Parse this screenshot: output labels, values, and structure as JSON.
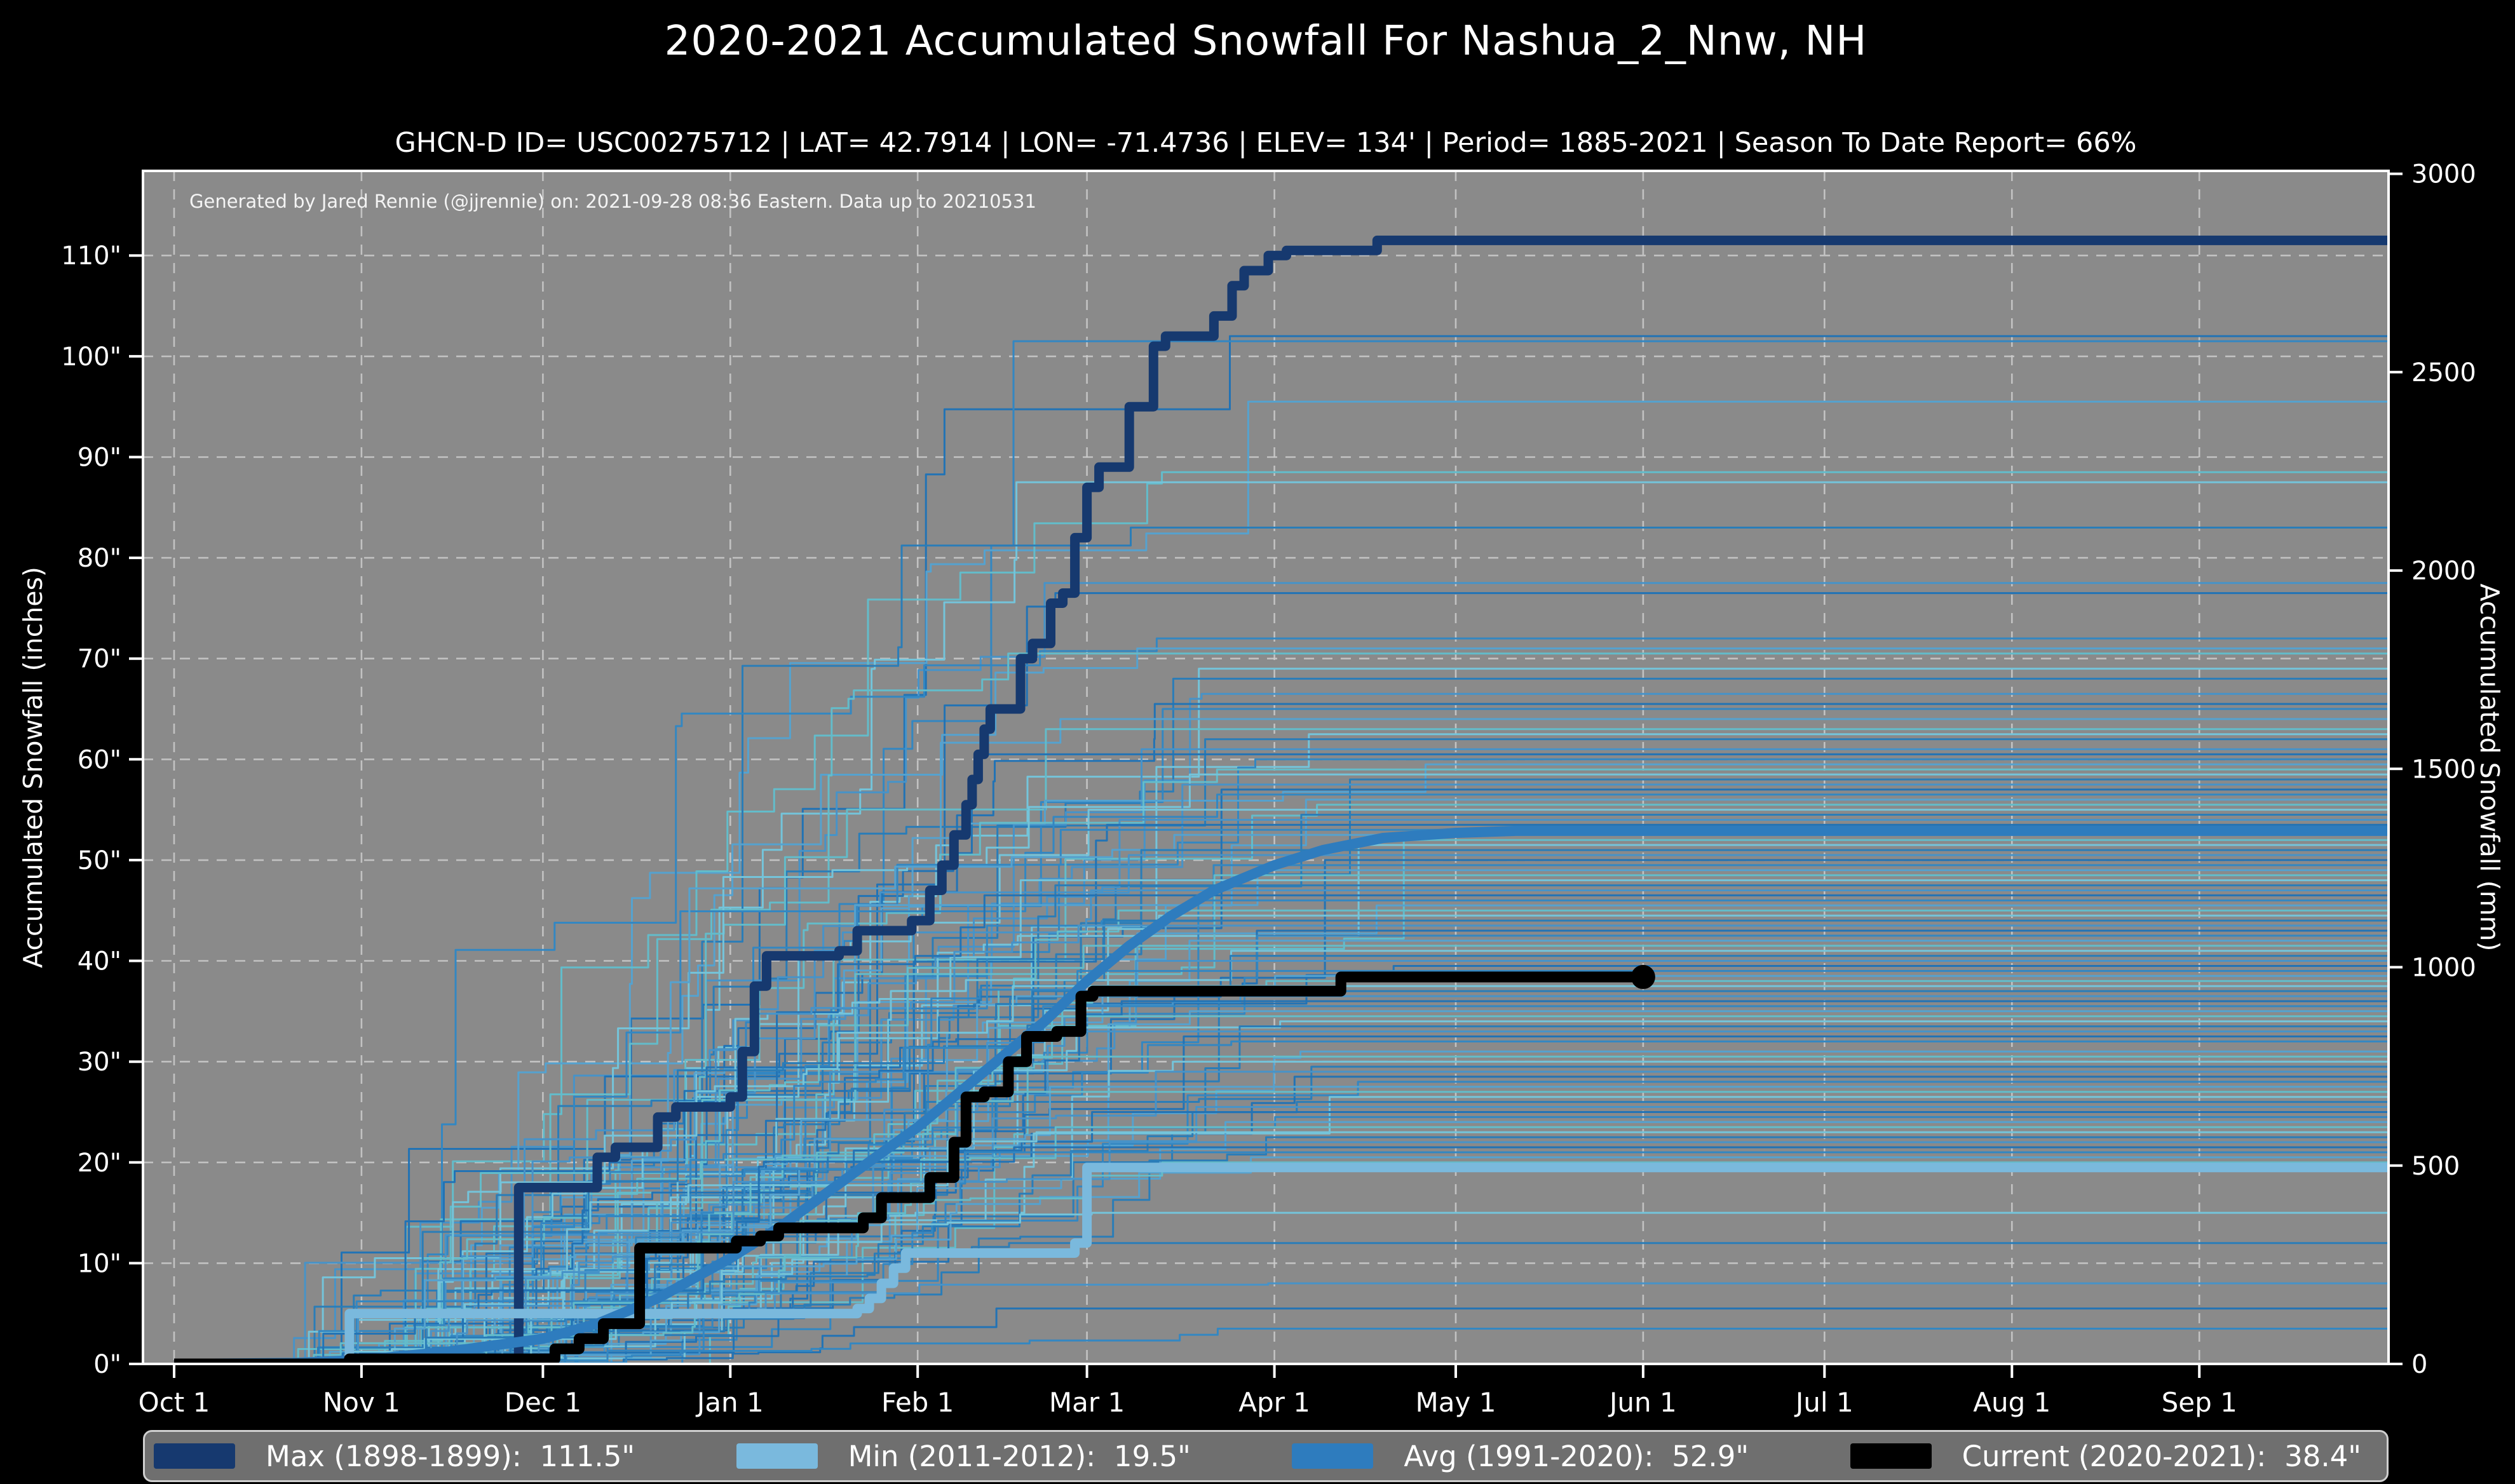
{
  "title": "2020-2021 Accumulated Snowfall For Nashua_2_Nnw, NH",
  "subtitle": "GHCN-D ID= USC00275712 | LAT= 42.7914 | LON= -71.4736 | ELEV= 134' | Period= 1885-2021 | Season To Date Report= 66%",
  "attribution": "Generated by Jared Rennie (@jjrennie) on: 2021-09-28 08:36 Eastern. Data up to 20210531",
  "colors": {
    "page_bg": "#000000",
    "plot_bg": "#8a8a8a",
    "grid": "#cccccc",
    "spine": "#ffffff",
    "max": "#16396f",
    "min": "#7ab9dd",
    "avg": "#2e7cbe",
    "current": "#000000",
    "legend_bg": "#6f6f6f",
    "legend_border": "#cfcfcf"
  },
  "chart_data": {
    "type": "line",
    "title": "2020-2021 Accumulated Snowfall For Nashua_2_Nnw, NH",
    "xlabel": "",
    "ylabel_left": "Accumulated Snowfall (inches)",
    "ylabel_right": "Accumulated Snowfall (mm)",
    "grid": "dashed",
    "xlim_days_from_oct1": [
      -5.15,
      366.3
    ],
    "ylim_inches": [
      0,
      118.4
    ],
    "x_ticks": [
      {
        "day": 0,
        "label": "Oct 1"
      },
      {
        "day": 31,
        "label": "Nov 1"
      },
      {
        "day": 61,
        "label": "Dec 1"
      },
      {
        "day": 92,
        "label": "Jan 1"
      },
      {
        "day": 123,
        "label": "Feb 1"
      },
      {
        "day": 151,
        "label": "Mar 1"
      },
      {
        "day": 182,
        "label": "Apr 1"
      },
      {
        "day": 212,
        "label": "May 1"
      },
      {
        "day": 243,
        "label": "Jun 1"
      },
      {
        "day": 273,
        "label": "Jul 1"
      },
      {
        "day": 304,
        "label": "Aug 1"
      },
      {
        "day": 335,
        "label": "Sep 1"
      }
    ],
    "y_ticks_left_inches": [
      0,
      10,
      20,
      30,
      40,
      50,
      60,
      70,
      80,
      90,
      100,
      110
    ],
    "y_tick_left_suffix": "\"",
    "y_ticks_right_mm": [
      0,
      500,
      1000,
      1500,
      2000,
      2500,
      3000
    ],
    "series": [
      {
        "name": "Max (1898-1899)",
        "total_inches": 111.5,
        "style": "step",
        "color": "#16396f",
        "width": 15,
        "extend_to_day": 367,
        "points": [
          [
            0,
            0
          ],
          [
            55,
            0.5
          ],
          [
            57,
            17.5
          ],
          [
            70,
            20.5
          ],
          [
            73,
            21.5
          ],
          [
            80,
            24.5
          ],
          [
            83,
            25.5
          ],
          [
            92,
            26.5
          ],
          [
            94,
            31
          ],
          [
            96,
            37.5
          ],
          [
            98,
            40.5
          ],
          [
            110,
            41
          ],
          [
            113,
            43
          ],
          [
            122,
            44
          ],
          [
            125,
            47
          ],
          [
            127,
            49.5
          ],
          [
            129,
            52.5
          ],
          [
            131,
            55.5
          ],
          [
            132,
            58
          ],
          [
            133,
            60.5
          ],
          [
            134,
            63
          ],
          [
            135,
            65
          ],
          [
            140,
            70
          ],
          [
            142,
            71.5
          ],
          [
            145,
            75.5
          ],
          [
            147,
            76.5
          ],
          [
            149,
            82
          ],
          [
            151,
            87
          ],
          [
            153,
            89
          ],
          [
            158,
            95
          ],
          [
            162,
            101
          ],
          [
            164,
            102
          ],
          [
            172,
            104
          ],
          [
            175,
            107
          ],
          [
            177,
            108.5
          ],
          [
            181,
            110
          ],
          [
            184,
            110.5
          ],
          [
            199,
            111.5
          ]
        ]
      },
      {
        "name": "Min (2011-2012)",
        "total_inches": 19.5,
        "style": "step",
        "color": "#7ab9dd",
        "width": 15,
        "extend_to_day": 367,
        "points": [
          [
            0,
            0
          ],
          [
            29,
            5
          ],
          [
            113,
            5.5
          ],
          [
            115,
            6.5
          ],
          [
            117,
            8
          ],
          [
            119,
            9.5
          ],
          [
            121,
            11
          ],
          [
            149,
            12
          ],
          [
            151,
            19.5
          ]
        ]
      },
      {
        "name": "Avg (1991-2020)",
        "total_inches": 52.9,
        "style": "smooth",
        "color": "#2e7cbe",
        "width": 16,
        "extend_to_day": 367,
        "points": [
          [
            0,
            0
          ],
          [
            20,
            0.1
          ],
          [
            31,
            0.4
          ],
          [
            45,
            1.2
          ],
          [
            61,
            2.5
          ],
          [
            70,
            4
          ],
          [
            80,
            6.5
          ],
          [
            92,
            10.5
          ],
          [
            100,
            13.5
          ],
          [
            108,
            17
          ],
          [
            116,
            20.5
          ],
          [
            123,
            23.5
          ],
          [
            130,
            27
          ],
          [
            137,
            30.5
          ],
          [
            144,
            34
          ],
          [
            151,
            38
          ],
          [
            158,
            41.5
          ],
          [
            165,
            44.5
          ],
          [
            172,
            47
          ],
          [
            182,
            49.5
          ],
          [
            190,
            51
          ],
          [
            200,
            52.2
          ],
          [
            212,
            52.7
          ],
          [
            222,
            52.9
          ]
        ]
      },
      {
        "name": "Current (2020-2021)",
        "total_inches": 38.4,
        "style": "step",
        "color": "#000000",
        "width": 17,
        "end_day": 243,
        "end_dot": true,
        "dot_radius": 19,
        "points": [
          [
            0,
            0
          ],
          [
            29,
            0.5
          ],
          [
            63,
            1.5
          ],
          [
            67,
            2.5
          ],
          [
            71,
            4
          ],
          [
            77,
            11.5
          ],
          [
            93,
            12.2
          ],
          [
            97,
            12.7
          ],
          [
            100,
            13.5
          ],
          [
            114,
            14.5
          ],
          [
            117,
            16.5
          ],
          [
            125,
            18.5
          ],
          [
            129,
            22
          ],
          [
            131,
            26.5
          ],
          [
            134,
            27
          ],
          [
            138,
            30
          ],
          [
            141,
            32.5
          ],
          [
            146,
            33
          ],
          [
            150,
            36.5
          ],
          [
            152,
            37
          ],
          [
            193,
            38.4
          ]
        ]
      }
    ],
    "background_seasons": {
      "description": "Thin historical season traces 1885-2021, plateau value = season total (inches)",
      "seed": 11,
      "width": 3,
      "palette": [
        "#2273b5",
        "#3387c2",
        "#55a2cf",
        "#63bcca",
        "#74c4da",
        "#2a7db8",
        "#4793c8"
      ],
      "totals": [
        102,
        101.5,
        95.5,
        88.5,
        87.5,
        83,
        77.5,
        76.5,
        72,
        71,
        70.5,
        69,
        68,
        66.5,
        65.5,
        65,
        64,
        63,
        62.5,
        62,
        61,
        60.5,
        60,
        59.5,
        59,
        58.5,
        58,
        57.5,
        57,
        56.5,
        56,
        55.5,
        55,
        54.5,
        54,
        53.5,
        53,
        52.5,
        52,
        51.5,
        51,
        50.5,
        50,
        49.5,
        49,
        48.5,
        48,
        47.5,
        47,
        46.5,
        46,
        45.5,
        45,
        44.5,
        44,
        43.5,
        43,
        42.5,
        42,
        41.5,
        41,
        40.5,
        40,
        39.5,
        39,
        38.5,
        38,
        37.5,
        37,
        36.5,
        36,
        35.5,
        35,
        34.5,
        34,
        33.5,
        33,
        32.5,
        32,
        31,
        30.5,
        30,
        29.5,
        29,
        28.5,
        28,
        27.5,
        27,
        26.5,
        26,
        25.5,
        25,
        24.5,
        24,
        23.5,
        23,
        22.5,
        22,
        21.5,
        21,
        20.5,
        20,
        15,
        12,
        8,
        5.5,
        3.5
      ]
    }
  },
  "legend": {
    "entries": [
      {
        "label": "Max (1898-1899):  111.5\"",
        "color": "#16396f"
      },
      {
        "label": "Min (2011-2012):  19.5\"",
        "color": "#7ab9dd"
      },
      {
        "label": "Avg (1991-2020):  52.9\"",
        "color": "#2e7cbe"
      },
      {
        "label": "Current (2020-2021):  38.4\"",
        "color": "#000000"
      }
    ]
  }
}
